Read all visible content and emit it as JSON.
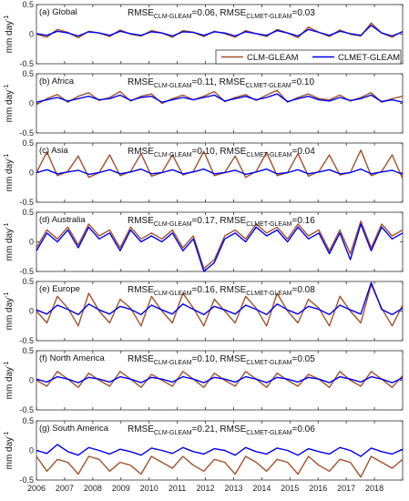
{
  "chart_data": {
    "type": "line",
    "series_names": [
      "CLM-GLEAM",
      "CLMET-GLEAM"
    ],
    "series_colors": {
      "CLM-GLEAM": "#a0522d",
      "CLMET-GLEAM": "#0000ee"
    },
    "legend_position": "top-right of panel (a)",
    "ylabel": "mm day-1",
    "ylabel_main": "mm day",
    "ylabel_sup": "-1",
    "x_tick_labels": [
      "2006",
      "2007",
      "2008",
      "2009",
      "2010",
      "2011",
      "2012",
      "2013",
      "2014",
      "2015",
      "2016",
      "2017",
      "2018"
    ],
    "x_range": [
      "2006-01",
      "2018-12"
    ],
    "panels": [
      {
        "id": "a",
        "label": "(a) Global",
        "rmse_clm": "0.06",
        "rmse_clmet": "0.03",
        "ylim": [
          -0.5,
          0.5
        ],
        "yticks": [
          "0.5",
          "0",
          "-0.5"
        ],
        "clm": [
          0,
          -0.05,
          0.08,
          0.03,
          -0.06,
          0.05,
          0.02,
          -0.04,
          0.07,
          0,
          -0.03,
          0.06,
          0.02,
          -0.05,
          0.06,
          0.03,
          -0.04,
          0.05,
          0.01,
          -0.05,
          0.06,
          0.01,
          -0.04,
          0.08,
          0.02,
          -0.06,
          0.12,
          0.03,
          -0.04,
          0.07,
          0,
          -0.03,
          0.19,
          0.02,
          -0.05,
          0.05
        ],
        "clmet": [
          0.01,
          -0.02,
          0.05,
          0.02,
          -0.03,
          0.04,
          0.02,
          -0.02,
          0.05,
          0.01,
          -0.02,
          0.04,
          0.02,
          -0.03,
          0.04,
          0.03,
          -0.02,
          0.04,
          0.02,
          -0.03,
          0.04,
          0.01,
          -0.02,
          0.06,
          0.02,
          -0.03,
          0.08,
          0.03,
          -0.02,
          0.05,
          0.01,
          -0.02,
          0.15,
          0.02,
          -0.03,
          0.04
        ]
      },
      {
        "id": "b",
        "label": "(b) Africa",
        "rmse_clm": "0.11",
        "rmse_clmet": "0.10",
        "ylim": [
          -0.5,
          0.5
        ],
        "yticks": [
          "0.5",
          "0",
          "-0.5"
        ],
        "clm": [
          -0.02,
          0.08,
          0.15,
          0.02,
          0.12,
          0.18,
          0.05,
          0.1,
          0.2,
          0.04,
          0.12,
          0.16,
          0,
          0.08,
          0.14,
          0.06,
          0.12,
          0.2,
          0.03,
          0.1,
          0.15,
          0.05,
          0.14,
          0.22,
          0.02,
          0.1,
          0.16,
          0.08,
          0.06,
          0.14,
          0.04,
          0.1,
          0.18,
          0.02,
          0.08,
          0.12
        ],
        "clmet": [
          0.02,
          0.06,
          0.1,
          0.04,
          0.08,
          0.12,
          0.06,
          0.08,
          0.14,
          0.05,
          0.1,
          0.12,
          0.02,
          0.06,
          0.1,
          0.06,
          0.1,
          0.14,
          0.04,
          0.08,
          0.12,
          0.06,
          0.1,
          0.16,
          0.03,
          0.08,
          0.12,
          0.06,
          0.04,
          0.1,
          0.05,
          0.08,
          0.14,
          0.03,
          0.06,
          0.02
        ]
      },
      {
        "id": "c",
        "label": "(c) Asia",
        "rmse_clm": "0.10",
        "rmse_clmet": "0.04",
        "ylim": [
          -0.5,
          0.5
        ],
        "yticks": [
          "0.5",
          "0",
          "-0.5"
        ],
        "clm": [
          0,
          0.35,
          -0.05,
          0.02,
          0.28,
          -0.08,
          0,
          0.3,
          -0.05,
          0.02,
          0.32,
          -0.06,
          0,
          0.3,
          -0.04,
          0.02,
          0.36,
          -0.05,
          0,
          0.28,
          -0.08,
          0.02,
          0.34,
          -0.05,
          0,
          0.32,
          -0.06,
          0.02,
          0.3,
          -0.04,
          0,
          0.38,
          -0.05,
          0.02,
          0.3,
          -0.1
        ],
        "clmet": [
          0,
          0.05,
          -0.02,
          0.01,
          0.04,
          -0.03,
          0,
          0.05,
          -0.02,
          0.01,
          0.06,
          -0.02,
          0,
          0.05,
          -0.02,
          0.01,
          0.06,
          -0.02,
          0,
          0.04,
          -0.03,
          0.01,
          0.06,
          -0.02,
          0,
          0.05,
          -0.02,
          0.01,
          0.05,
          -0.02,
          0,
          0.06,
          -0.02,
          0.01,
          0.04,
          -0.03
        ]
      },
      {
        "id": "d",
        "label": "(d) Australia",
        "rmse_clm": "0.17",
        "rmse_clmet": "0.16",
        "ylim": [
          -0.5,
          0.5
        ],
        "yticks": [
          "0.5",
          "0",
          "-0.5"
        ],
        "clm": [
          -0.1,
          0.2,
          0.05,
          0.25,
          -0.05,
          0.3,
          0.1,
          0.2,
          -0.1,
          0.25,
          0.05,
          0.15,
          0.05,
          0.2,
          -0.1,
          0.1,
          -0.45,
          -0.3,
          0.1,
          0.2,
          0.05,
          0.3,
          0.15,
          0.25,
          0.05,
          0.3,
          0.1,
          0.2,
          -0.15,
          0.2,
          -0.2,
          0.35,
          -0.1,
          0.3,
          0.1,
          0.2
        ],
        "clmet": [
          -0.15,
          0.15,
          0,
          0.2,
          -0.1,
          0.25,
          0.05,
          0.15,
          -0.15,
          0.2,
          0,
          0.1,
          0,
          0.15,
          -0.15,
          0.05,
          -0.55,
          -0.35,
          0.05,
          0.15,
          0,
          0.25,
          0.1,
          0.2,
          0,
          0.25,
          0.05,
          0.15,
          -0.2,
          0.15,
          -0.3,
          0.3,
          -0.15,
          0.25,
          0.05,
          0.15
        ]
      },
      {
        "id": "e",
        "label": "(e) Europe",
        "rmse_clm": "0.16",
        "rmse_clmet": "0.08",
        "ylim": [
          -0.5,
          0.5
        ],
        "yticks": [
          "0.5",
          "0",
          "-0.5"
        ],
        "clm": [
          0,
          -0.2,
          0.25,
          0.05,
          -0.25,
          0.3,
          0,
          -0.2,
          0.2,
          0.05,
          -0.25,
          0.25,
          0,
          -0.2,
          0.3,
          0.05,
          -0.25,
          0.2,
          0,
          -0.2,
          0.25,
          0.05,
          -0.25,
          0.3,
          0,
          -0.2,
          0.2,
          0.05,
          -0.25,
          0.25,
          0,
          -0.2,
          0.45,
          0.05,
          -0.25,
          0.1
        ],
        "clmet": [
          0.02,
          -0.05,
          0.1,
          0.03,
          -0.06,
          0.12,
          0.02,
          -0.05,
          0.08,
          0.03,
          -0.06,
          0.1,
          0.02,
          -0.05,
          0.12,
          0.03,
          -0.06,
          0.08,
          0.02,
          -0.05,
          0.1,
          0.03,
          -0.06,
          0.12,
          0.02,
          -0.05,
          0.08,
          0.03,
          -0.06,
          0.1,
          0.02,
          -0.05,
          0.48,
          0.03,
          -0.06,
          0.05
        ]
      },
      {
        "id": "f",
        "label": "(f) North America",
        "rmse_clm": "0.10",
        "rmse_clmet": "0.05",
        "ylim": [
          -0.5,
          0.5
        ],
        "yticks": [
          "0.5",
          "0",
          "-0.5"
        ],
        "clm": [
          0,
          -0.1,
          0.15,
          0.02,
          -0.12,
          0.12,
          0,
          -0.1,
          0.15,
          0.02,
          -0.12,
          0.1,
          0,
          -0.1,
          0.15,
          0.02,
          -0.12,
          0.12,
          0,
          -0.1,
          0.15,
          0.02,
          -0.12,
          0.12,
          0,
          -0.1,
          0.1,
          0.02,
          -0.12,
          0.15,
          0,
          -0.1,
          0.15,
          0.02,
          -0.12,
          0.08
        ],
        "clmet": [
          0.02,
          -0.03,
          0.06,
          0.02,
          -0.04,
          0.05,
          0.02,
          -0.03,
          0.06,
          0.02,
          -0.04,
          0.05,
          0.02,
          -0.03,
          0.06,
          0.02,
          -0.04,
          0.05,
          0.02,
          -0.03,
          0.06,
          0.02,
          -0.04,
          0.05,
          0.02,
          -0.03,
          0.05,
          0.02,
          -0.04,
          0.06,
          0.02,
          -0.03,
          0.06,
          0.02,
          -0.04,
          0.04
        ]
      },
      {
        "id": "g",
        "label": "(g) South America",
        "rmse_clm": "0.21",
        "rmse_clmet": "0.06",
        "ylim": [
          -0.5,
          0.5
        ],
        "yticks": [
          "0.5",
          "0",
          "-0.5"
        ],
        "clm": [
          -0.1,
          -0.35,
          -0.15,
          -0.2,
          -0.4,
          -0.1,
          -0.15,
          -0.35,
          -0.2,
          -0.25,
          -0.4,
          -0.1,
          -0.2,
          -0.3,
          -0.1,
          -0.25,
          -0.35,
          -0.15,
          -0.2,
          -0.4,
          -0.1,
          -0.2,
          -0.35,
          -0.15,
          -0.2,
          -0.4,
          -0.1,
          -0.25,
          -0.35,
          -0.15,
          -0.2,
          -0.45,
          -0.1,
          -0.2,
          -0.3,
          -0.15
        ],
        "clmet": [
          0,
          -0.05,
          0.1,
          -0.02,
          -0.08,
          0.05,
          0,
          -0.06,
          0.02,
          -0.02,
          -0.08,
          0.04,
          0,
          -0.05,
          0.05,
          -0.02,
          -0.06,
          0.03,
          0,
          -0.08,
          0.05,
          -0.02,
          -0.06,
          0.04,
          0,
          -0.08,
          0.03,
          -0.02,
          -0.06,
          0.05,
          0,
          -0.1,
          0.04,
          -0.02,
          -0.06,
          0.02
        ]
      }
    ]
  }
}
